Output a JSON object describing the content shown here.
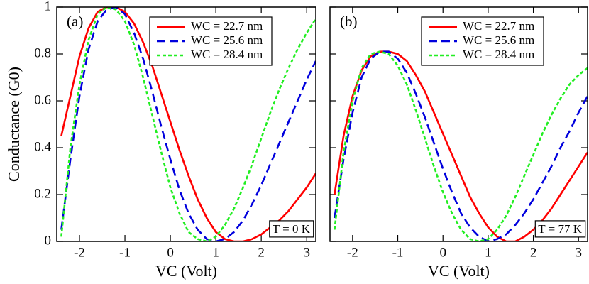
{
  "chart_data": [
    {
      "type": "line",
      "panel_label": "(a)",
      "annotation": "T = 0 K",
      "xlabel": "VC (Volt)",
      "ylabel": "Conductance (G0)",
      "xlim": [
        -2.5,
        3.2
      ],
      "xticks": [
        -2,
        -1,
        0,
        1,
        2,
        3
      ],
      "ylim": [
        0,
        1
      ],
      "yticks": [
        0,
        0.2,
        0.4,
        0.6,
        0.8,
        1
      ],
      "legend": "upper right",
      "x": [
        -2.4,
        -2.2,
        -2.0,
        -1.8,
        -1.6,
        -1.4,
        -1.2,
        -1.0,
        -0.8,
        -0.6,
        -0.4,
        -0.2,
        0,
        0.2,
        0.4,
        0.6,
        0.8,
        1.0,
        1.2,
        1.4,
        1.6,
        1.8,
        2.0,
        2.2,
        2.4,
        2.6,
        2.8,
        3.0,
        3.2
      ],
      "series": [
        {
          "name": "WC = 22.7 nm",
          "color": "#ff0000",
          "dash": "solid",
          "values": [
            0.45,
            0.62,
            0.79,
            0.91,
            0.98,
            1.0,
            1.0,
            0.98,
            0.93,
            0.85,
            0.75,
            0.63,
            0.51,
            0.39,
            0.28,
            0.18,
            0.1,
            0.04,
            0.01,
            0.0,
            0.0,
            0.01,
            0.03,
            0.06,
            0.09,
            0.13,
            0.18,
            0.23,
            0.29
          ]
        },
        {
          "name": "WC = 25.6 nm",
          "color": "#0000dd",
          "dash": "long",
          "values": [
            0.05,
            0.35,
            0.62,
            0.82,
            0.94,
            0.99,
            1.0,
            0.97,
            0.89,
            0.78,
            0.64,
            0.49,
            0.35,
            0.22,
            0.12,
            0.05,
            0.01,
            0.0,
            0.01,
            0.04,
            0.09,
            0.16,
            0.24,
            0.33,
            0.42,
            0.51,
            0.6,
            0.69,
            0.77
          ]
        },
        {
          "name": "WC = 28.4 nm",
          "color": "#22ee22",
          "dash": "short",
          "values": [
            0.02,
            0.4,
            0.67,
            0.86,
            0.97,
            1.0,
            0.99,
            0.94,
            0.84,
            0.7,
            0.54,
            0.38,
            0.23,
            0.12,
            0.04,
            0.01,
            0.0,
            0.02,
            0.07,
            0.14,
            0.23,
            0.33,
            0.44,
            0.55,
            0.65,
            0.74,
            0.82,
            0.89,
            0.95
          ]
        }
      ]
    },
    {
      "type": "line",
      "panel_label": "(b)",
      "annotation": "T = 77 K",
      "xlabel": "VC (Volt)",
      "xlim": [
        -2.5,
        3.2
      ],
      "xticks": [
        -2,
        -1,
        0,
        1,
        2,
        3
      ],
      "ylim": [
        0,
        1
      ],
      "yticks": [
        0,
        0.2,
        0.4,
        0.6,
        0.8,
        1
      ],
      "legend": "upper right",
      "x": [
        -2.4,
        -2.2,
        -2.0,
        -1.8,
        -1.6,
        -1.4,
        -1.2,
        -1.0,
        -0.8,
        -0.6,
        -0.4,
        -0.2,
        0,
        0.2,
        0.4,
        0.6,
        0.8,
        1.0,
        1.2,
        1.4,
        1.6,
        1.8,
        2.0,
        2.2,
        2.4,
        2.6,
        2.8,
        3.0,
        3.2
      ],
      "series": [
        {
          "name": "WC = 22.7 nm",
          "color": "#ff0000",
          "dash": "solid",
          "values": [
            0.2,
            0.45,
            0.62,
            0.73,
            0.79,
            0.81,
            0.81,
            0.8,
            0.77,
            0.71,
            0.64,
            0.55,
            0.46,
            0.37,
            0.28,
            0.19,
            0.12,
            0.06,
            0.02,
            0.0,
            0.0,
            0.02,
            0.05,
            0.09,
            0.14,
            0.2,
            0.26,
            0.32,
            0.38
          ]
        },
        {
          "name": "WC = 25.6 nm",
          "color": "#0000dd",
          "dash": "long",
          "values": [
            0.1,
            0.35,
            0.55,
            0.7,
            0.78,
            0.81,
            0.81,
            0.78,
            0.72,
            0.63,
            0.53,
            0.42,
            0.31,
            0.21,
            0.12,
            0.06,
            0.02,
            0.0,
            0.01,
            0.03,
            0.07,
            0.12,
            0.18,
            0.25,
            0.32,
            0.4,
            0.47,
            0.55,
            0.62
          ]
        },
        {
          "name": "WC = 28.4 nm",
          "color": "#22ee22",
          "dash": "short",
          "values": [
            0.05,
            0.38,
            0.6,
            0.74,
            0.8,
            0.81,
            0.8,
            0.75,
            0.67,
            0.56,
            0.44,
            0.32,
            0.21,
            0.12,
            0.05,
            0.01,
            0.0,
            0.01,
            0.05,
            0.11,
            0.19,
            0.28,
            0.37,
            0.46,
            0.54,
            0.61,
            0.67,
            0.71,
            0.74
          ]
        }
      ]
    }
  ]
}
